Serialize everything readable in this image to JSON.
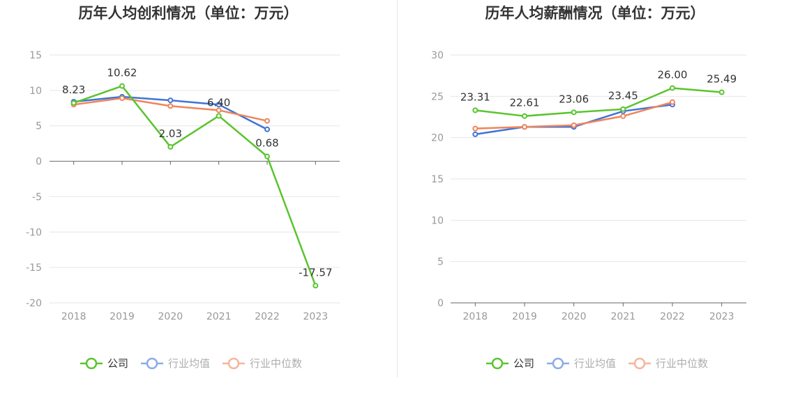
{
  "chart_data": [
    {
      "type": "line",
      "title": "历年人均创利情况（单位：万元）",
      "categories": [
        "2018",
        "2019",
        "2020",
        "2021",
        "2022",
        "2023"
      ],
      "ylim": [
        -20,
        15
      ],
      "yticks": [
        15,
        10,
        5,
        0,
        -5,
        -10,
        -15,
        -20
      ],
      "grid": true,
      "legend": "bottom",
      "series": [
        {
          "name": "公司",
          "color": "#5ac42e",
          "values": [
            8.23,
            10.62,
            2.03,
            6.4,
            0.68,
            -17.57
          ],
          "labels": [
            "8.23",
            "10.62",
            "2.03",
            "6.40",
            "0.68",
            "-17.57"
          ]
        },
        {
          "name": "行业均值",
          "color": "#3f74d6",
          "values": [
            8.4,
            9.1,
            8.6,
            8.0,
            4.5,
            null
          ]
        },
        {
          "name": "行业中位数",
          "color": "#f0845a",
          "values": [
            8.0,
            8.9,
            7.8,
            7.2,
            5.7,
            null
          ]
        }
      ]
    },
    {
      "type": "line",
      "title": "历年人均薪酬情况（单位：万元）",
      "categories": [
        "2018",
        "2019",
        "2020",
        "2021",
        "2022",
        "2023"
      ],
      "ylim": [
        0,
        30
      ],
      "yticks": [
        30,
        25,
        20,
        15,
        10,
        5,
        0
      ],
      "grid": true,
      "legend": "bottom",
      "series": [
        {
          "name": "公司",
          "color": "#5ac42e",
          "values": [
            23.31,
            22.61,
            23.06,
            23.45,
            26.0,
            25.49
          ],
          "labels": [
            "23.31",
            "22.61",
            "23.06",
            "23.45",
            "26.00",
            "25.49"
          ]
        },
        {
          "name": "行业均值",
          "color": "#3f74d6",
          "values": [
            20.4,
            21.3,
            21.3,
            23.2,
            24.0,
            null
          ]
        },
        {
          "name": "行业中位数",
          "color": "#f0845a",
          "values": [
            21.1,
            21.3,
            21.5,
            22.6,
            24.3,
            null
          ]
        }
      ]
    }
  ]
}
